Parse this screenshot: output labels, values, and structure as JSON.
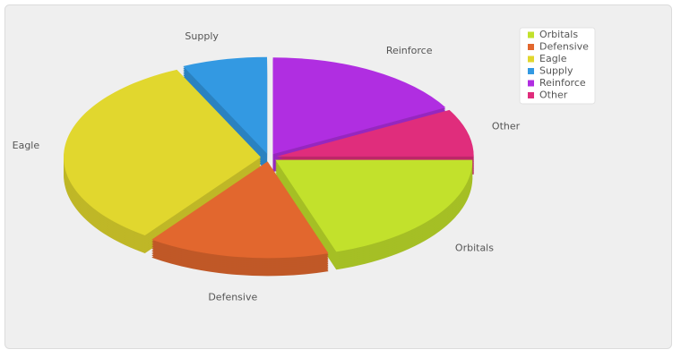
{
  "chart_data": {
    "type": "pie",
    "categories": [
      "Orbitals",
      "Defensive",
      "Eagle",
      "Supply",
      "Reinforce",
      "Other"
    ],
    "values": [
      20,
      15,
      33,
      7,
      17,
      8
    ],
    "colors": [
      "#c2e12c",
      "#e2672e",
      "#e1d72e",
      "#3399e2",
      "#b02ee1",
      "#e02d7c"
    ]
  }
}
